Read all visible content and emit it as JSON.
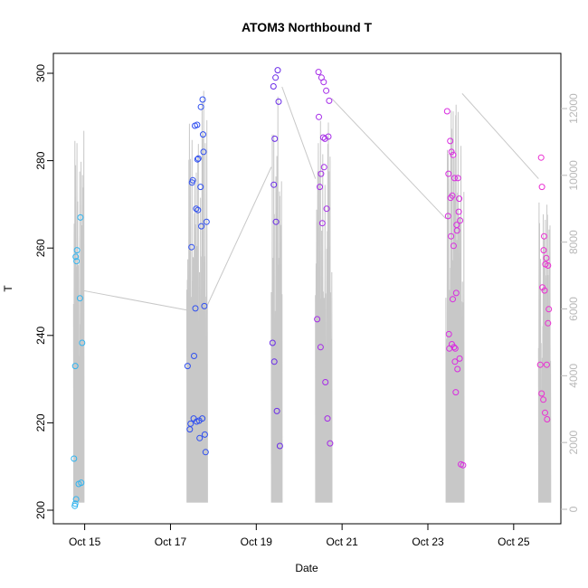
{
  "chart_data": {
    "type": "scatter",
    "title": "ATOM3 Northbound T",
    "xlabel": "Date",
    "ylabel": "T",
    "ylim": [
      200,
      302
    ],
    "y_ticks": [
      200,
      220,
      240,
      260,
      280,
      300
    ],
    "y2_ticks": [
      0,
      2000,
      4000,
      6000,
      8000,
      10000,
      12000
    ],
    "x_ticks": [
      {
        "day": 15,
        "label": "Oct 15"
      },
      {
        "day": 17,
        "label": "Oct 17"
      },
      {
        "day": 19,
        "label": "Oct 19"
      },
      {
        "day": 21,
        "label": "Oct 21"
      },
      {
        "day": 23,
        "label": "Oct 23"
      },
      {
        "day": 25,
        "label": "Oct 25"
      }
    ],
    "grid": false,
    "points": [
      {
        "x": 14.75,
        "y": 211.8
      },
      {
        "x": 14.77,
        "y": 201.0
      },
      {
        "x": 14.78,
        "y": 201.5
      },
      {
        "x": 14.8,
        "y": 202.5
      },
      {
        "x": 14.78,
        "y": 233.0
      },
      {
        "x": 14.79,
        "y": 258.0
      },
      {
        "x": 14.81,
        "y": 257.0
      },
      {
        "x": 14.82,
        "y": 259.5
      },
      {
        "x": 14.86,
        "y": 206.0
      },
      {
        "x": 14.89,
        "y": 248.5
      },
      {
        "x": 14.9,
        "y": 267.0
      },
      {
        "x": 14.92,
        "y": 206.3
      },
      {
        "x": 14.94,
        "y": 238.3
      },
      {
        "x": 17.4,
        "y": 233.0
      },
      {
        "x": 17.45,
        "y": 218.5
      },
      {
        "x": 17.47,
        "y": 219.8
      },
      {
        "x": 17.49,
        "y": 260.2
      },
      {
        "x": 17.5,
        "y": 275.0
      },
      {
        "x": 17.52,
        "y": 275.5
      },
      {
        "x": 17.54,
        "y": 221.0
      },
      {
        "x": 17.55,
        "y": 235.3
      },
      {
        "x": 17.57,
        "y": 288.0
      },
      {
        "x": 17.58,
        "y": 246.2
      },
      {
        "x": 17.6,
        "y": 269.0
      },
      {
        "x": 17.61,
        "y": 220.3
      },
      {
        "x": 17.62,
        "y": 288.2
      },
      {
        "x": 17.63,
        "y": 280.3
      },
      {
        "x": 17.64,
        "y": 268.7
      },
      {
        "x": 17.65,
        "y": 280.5
      },
      {
        "x": 17.67,
        "y": 220.5
      },
      {
        "x": 17.68,
        "y": 216.5
      },
      {
        "x": 17.7,
        "y": 274.0
      },
      {
        "x": 17.71,
        "y": 292.3
      },
      {
        "x": 17.72,
        "y": 265.0
      },
      {
        "x": 17.74,
        "y": 221.0
      },
      {
        "x": 17.75,
        "y": 294.0
      },
      {
        "x": 17.76,
        "y": 286.0
      },
      {
        "x": 17.77,
        "y": 282.0
      },
      {
        "x": 17.79,
        "y": 246.7
      },
      {
        "x": 17.8,
        "y": 217.3
      },
      {
        "x": 17.82,
        "y": 213.3
      },
      {
        "x": 17.84,
        "y": 266.0
      },
      {
        "x": 19.38,
        "y": 238.3
      },
      {
        "x": 19.4,
        "y": 297.0
      },
      {
        "x": 19.41,
        "y": 274.5
      },
      {
        "x": 19.42,
        "y": 234.0
      },
      {
        "x": 19.43,
        "y": 285.0
      },
      {
        "x": 19.45,
        "y": 299.0
      },
      {
        "x": 19.46,
        "y": 266.0
      },
      {
        "x": 19.48,
        "y": 222.7
      },
      {
        "x": 19.5,
        "y": 300.7
      },
      {
        "x": 19.52,
        "y": 293.5
      },
      {
        "x": 19.55,
        "y": 214.7
      },
      {
        "x": 20.42,
        "y": 243.7
      },
      {
        "x": 20.45,
        "y": 300.3
      },
      {
        "x": 20.46,
        "y": 290.0
      },
      {
        "x": 20.48,
        "y": 274.0
      },
      {
        "x": 20.5,
        "y": 237.3
      },
      {
        "x": 20.51,
        "y": 277.0
      },
      {
        "x": 20.52,
        "y": 299.0
      },
      {
        "x": 20.54,
        "y": 265.7
      },
      {
        "x": 20.56,
        "y": 285.3
      },
      {
        "x": 20.57,
        "y": 298.0
      },
      {
        "x": 20.58,
        "y": 278.5
      },
      {
        "x": 20.6,
        "y": 285.0
      },
      {
        "x": 20.61,
        "y": 229.3
      },
      {
        "x": 20.63,
        "y": 296.0
      },
      {
        "x": 20.64,
        "y": 269.0
      },
      {
        "x": 20.66,
        "y": 221.0
      },
      {
        "x": 20.68,
        "y": 285.5
      },
      {
        "x": 20.7,
        "y": 293.7
      },
      {
        "x": 20.72,
        "y": 215.3
      },
      {
        "x": 23.45,
        "y": 291.3
      },
      {
        "x": 23.47,
        "y": 267.3
      },
      {
        "x": 23.48,
        "y": 277.0
      },
      {
        "x": 23.49,
        "y": 240.3
      },
      {
        "x": 23.5,
        "y": 237.0
      },
      {
        "x": 23.52,
        "y": 284.5
      },
      {
        "x": 23.53,
        "y": 271.5
      },
      {
        "x": 23.54,
        "y": 262.7
      },
      {
        "x": 23.55,
        "y": 282.0
      },
      {
        "x": 23.56,
        "y": 238.0
      },
      {
        "x": 23.57,
        "y": 272.0
      },
      {
        "x": 23.58,
        "y": 248.3
      },
      {
        "x": 23.59,
        "y": 281.3
      },
      {
        "x": 23.6,
        "y": 260.5
      },
      {
        "x": 23.61,
        "y": 237.3
      },
      {
        "x": 23.62,
        "y": 276.0
      },
      {
        "x": 23.63,
        "y": 234.0
      },
      {
        "x": 23.64,
        "y": 237.0
      },
      {
        "x": 23.65,
        "y": 227.0
      },
      {
        "x": 23.66,
        "y": 249.7
      },
      {
        "x": 23.67,
        "y": 265.3
      },
      {
        "x": 23.68,
        "y": 264.0
      },
      {
        "x": 23.69,
        "y": 232.3
      },
      {
        "x": 23.7,
        "y": 276.0
      },
      {
        "x": 23.72,
        "y": 268.3
      },
      {
        "x": 23.73,
        "y": 271.3
      },
      {
        "x": 23.74,
        "y": 234.7
      },
      {
        "x": 23.75,
        "y": 266.3
      },
      {
        "x": 23.77,
        "y": 210.5
      },
      {
        "x": 23.82,
        "y": 210.3
      },
      {
        "x": 25.62,
        "y": 233.3
      },
      {
        "x": 25.64,
        "y": 280.7
      },
      {
        "x": 25.65,
        "y": 226.7
      },
      {
        "x": 25.66,
        "y": 274.0
      },
      {
        "x": 25.67,
        "y": 251.0
      },
      {
        "x": 25.69,
        "y": 225.3
      },
      {
        "x": 25.7,
        "y": 259.5
      },
      {
        "x": 25.71,
        "y": 262.7
      },
      {
        "x": 25.72,
        "y": 250.3
      },
      {
        "x": 25.73,
        "y": 222.3
      },
      {
        "x": 25.74,
        "y": 256.3
      },
      {
        "x": 25.76,
        "y": 257.7
      },
      {
        "x": 25.77,
        "y": 233.3
      },
      {
        "x": 25.78,
        "y": 220.8
      },
      {
        "x": 25.8,
        "y": 256.0
      },
      {
        "x": 25.8,
        "y": 242.8
      },
      {
        "x": 25.82,
        "y": 246.0
      }
    ],
    "color_ramp": [
      "#30b4f0",
      "#2f4ff0",
      "#6a2be8",
      "#a52be8",
      "#d92be0",
      "#ea2ed2"
    ],
    "secondary_series": {
      "y2lim": [
        0,
        13000
      ],
      "connectors": [
        {
          "x1": 14.96,
          "y1": 6550,
          "x2": 17.45,
          "y2": 5950
        },
        {
          "x1": 17.82,
          "y1": 6000,
          "x2": 19.35,
          "y2": 10250
        },
        {
          "x1": 19.6,
          "y1": 12650,
          "x2": 20.38,
          "y2": 9900
        },
        {
          "x1": 20.76,
          "y1": 12300,
          "x2": 23.42,
          "y2": 8700
        },
        {
          "x1": 23.8,
          "y1": 12450,
          "x2": 25.58,
          "y2": 9900
        }
      ],
      "bursts": [
        {
          "from": 14.74,
          "to": 14.98,
          "lines": 16,
          "low": 200,
          "high": 12000,
          "seed": 3
        },
        {
          "from": 17.38,
          "to": 17.86,
          "lines": 40,
          "low": 200,
          "high": 12800,
          "seed": 11
        },
        {
          "from": 19.35,
          "to": 19.6,
          "lines": 22,
          "low": 200,
          "high": 12600,
          "seed": 19
        },
        {
          "from": 20.38,
          "to": 20.76,
          "lines": 30,
          "low": 200,
          "high": 12400,
          "seed": 23
        },
        {
          "from": 23.42,
          "to": 23.84,
          "lines": 38,
          "low": 200,
          "high": 12200,
          "seed": 31
        },
        {
          "from": 25.58,
          "to": 25.86,
          "lines": 24,
          "low": 200,
          "high": 9200,
          "seed": 41
        }
      ]
    }
  }
}
